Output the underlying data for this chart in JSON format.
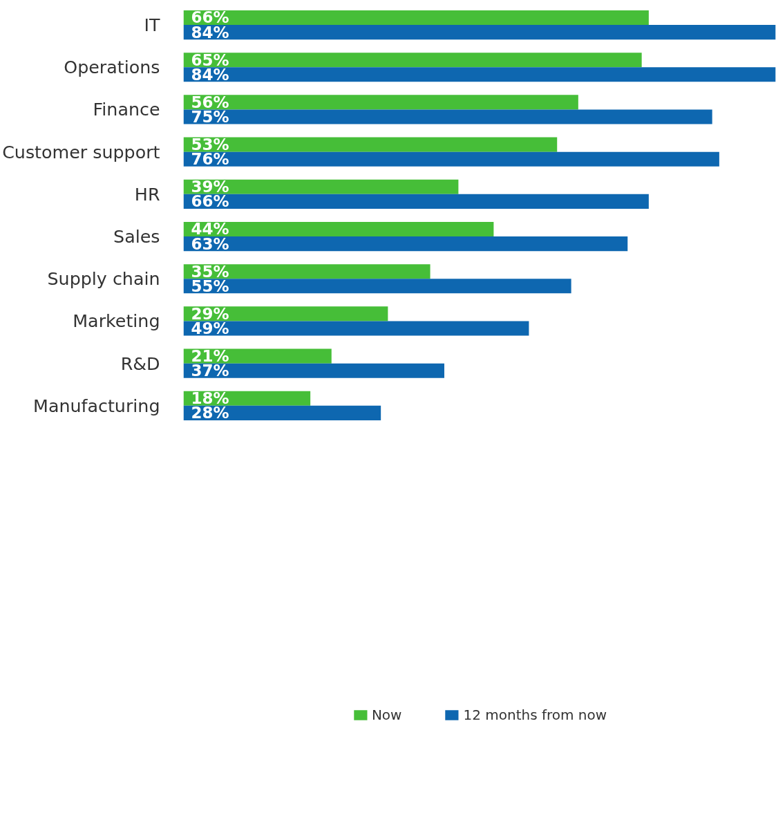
{
  "chart_data": {
    "type": "bar",
    "orientation": "horizontal",
    "legend": "bottom",
    "grid": false,
    "tick_labels": "y",
    "categories": [
      "IT",
      "Operations",
      "Finance",
      "Customer support",
      "HR",
      "Sales",
      "Supply chain",
      "Marketing",
      "R&D",
      "Manufacturing"
    ],
    "series": [
      {
        "name": "Now",
        "color": "#46be38",
        "values": [
          66,
          65,
          56,
          53,
          39,
          44,
          35,
          29,
          21,
          18
        ],
        "value_labels": [
          "66%",
          "65%",
          "56%",
          "53%",
          "39%",
          "44%",
          "35%",
          "29%",
          "21%",
          "18%"
        ]
      },
      {
        "name": "12 months from now",
        "color": "#0e67b0",
        "values": [
          84,
          84,
          75,
          76,
          66,
          63,
          55,
          49,
          37,
          28
        ],
        "value_labels": [
          "84%",
          "84%",
          "75%",
          "76%",
          "66%",
          "63%",
          "55%",
          "49%",
          "37%",
          "28%"
        ]
      }
    ]
  }
}
